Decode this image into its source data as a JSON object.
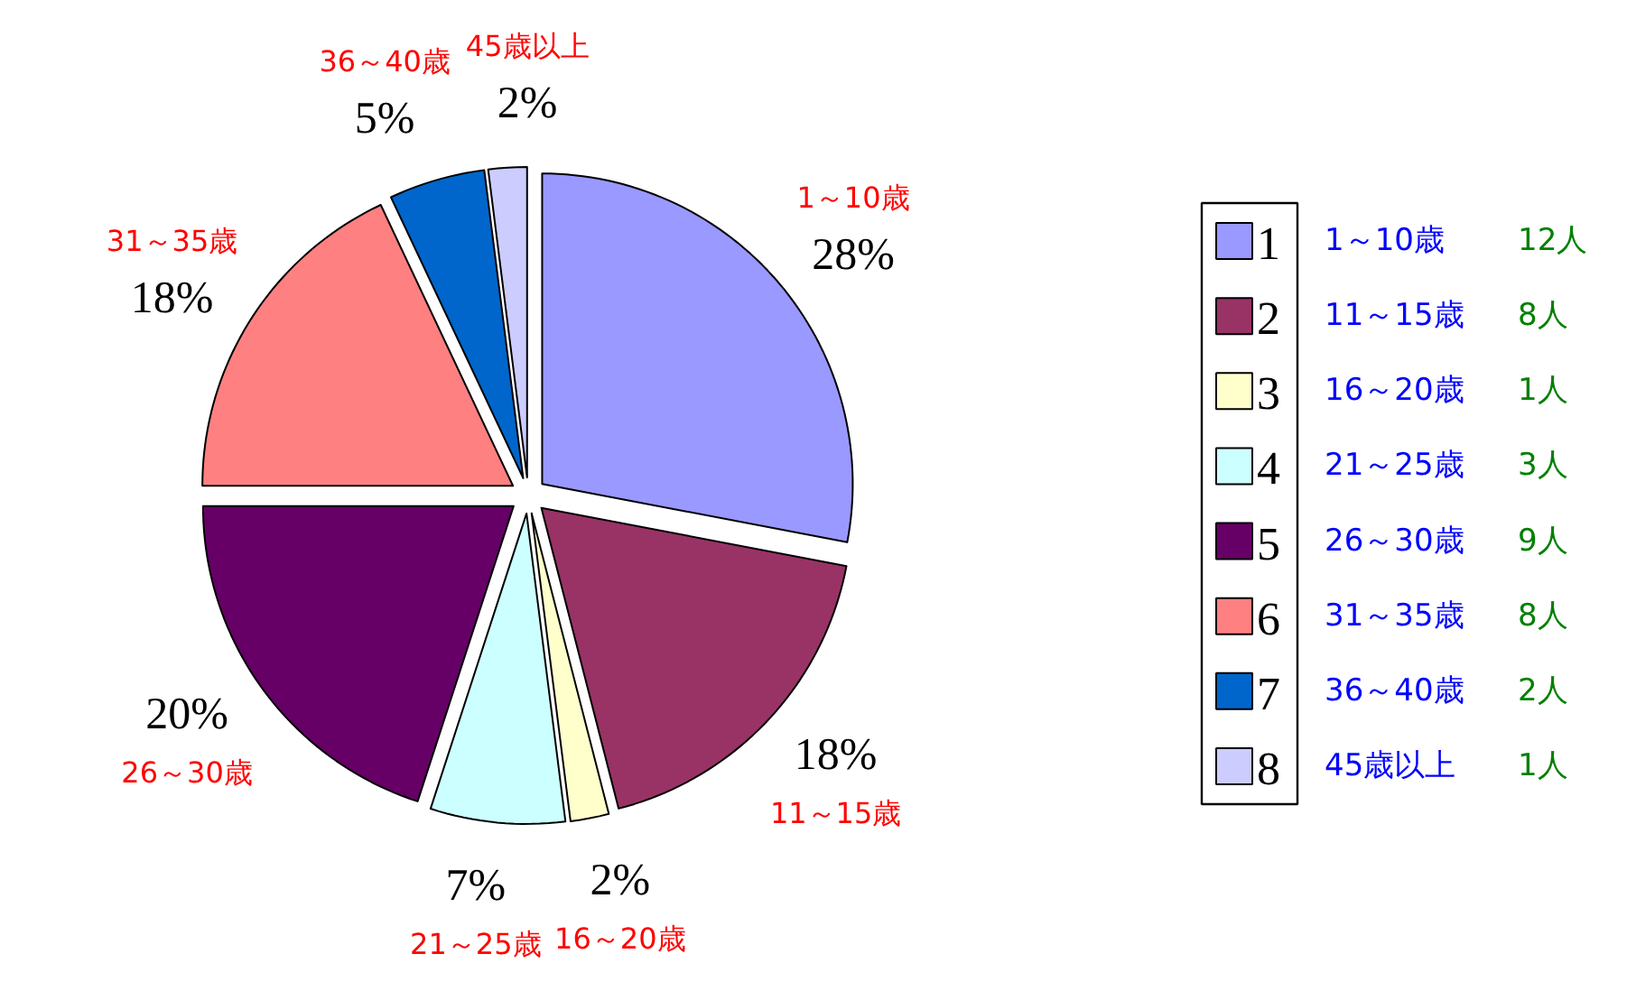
{
  "chart_data": {
    "type": "pie",
    "categories": [
      "1～10歳",
      "11～15歳",
      "16～20歳",
      "21～25歳",
      "26～30歳",
      "31～35歳",
      "36～40歳",
      "45歳以上"
    ],
    "values": [
      28,
      18,
      2,
      7,
      20,
      18,
      5,
      2
    ],
    "value_labels": [
      "28%",
      "18%",
      "2%",
      "7%",
      "20%",
      "18%",
      "5%",
      "2%"
    ],
    "colors": [
      "#9999ff",
      "#993366",
      "#ffffcc",
      "#ccffff",
      "#660066",
      "#ff8080",
      "#0066cc",
      "#ccccff"
    ],
    "legend": "right",
    "annotations": [
      "1",
      "2",
      "3",
      "4",
      "5",
      "6",
      "7",
      "8",
      "12人",
      "8人",
      "1人",
      "3人",
      "9人",
      "8人",
      "2人",
      "1人"
    ]
  }
}
